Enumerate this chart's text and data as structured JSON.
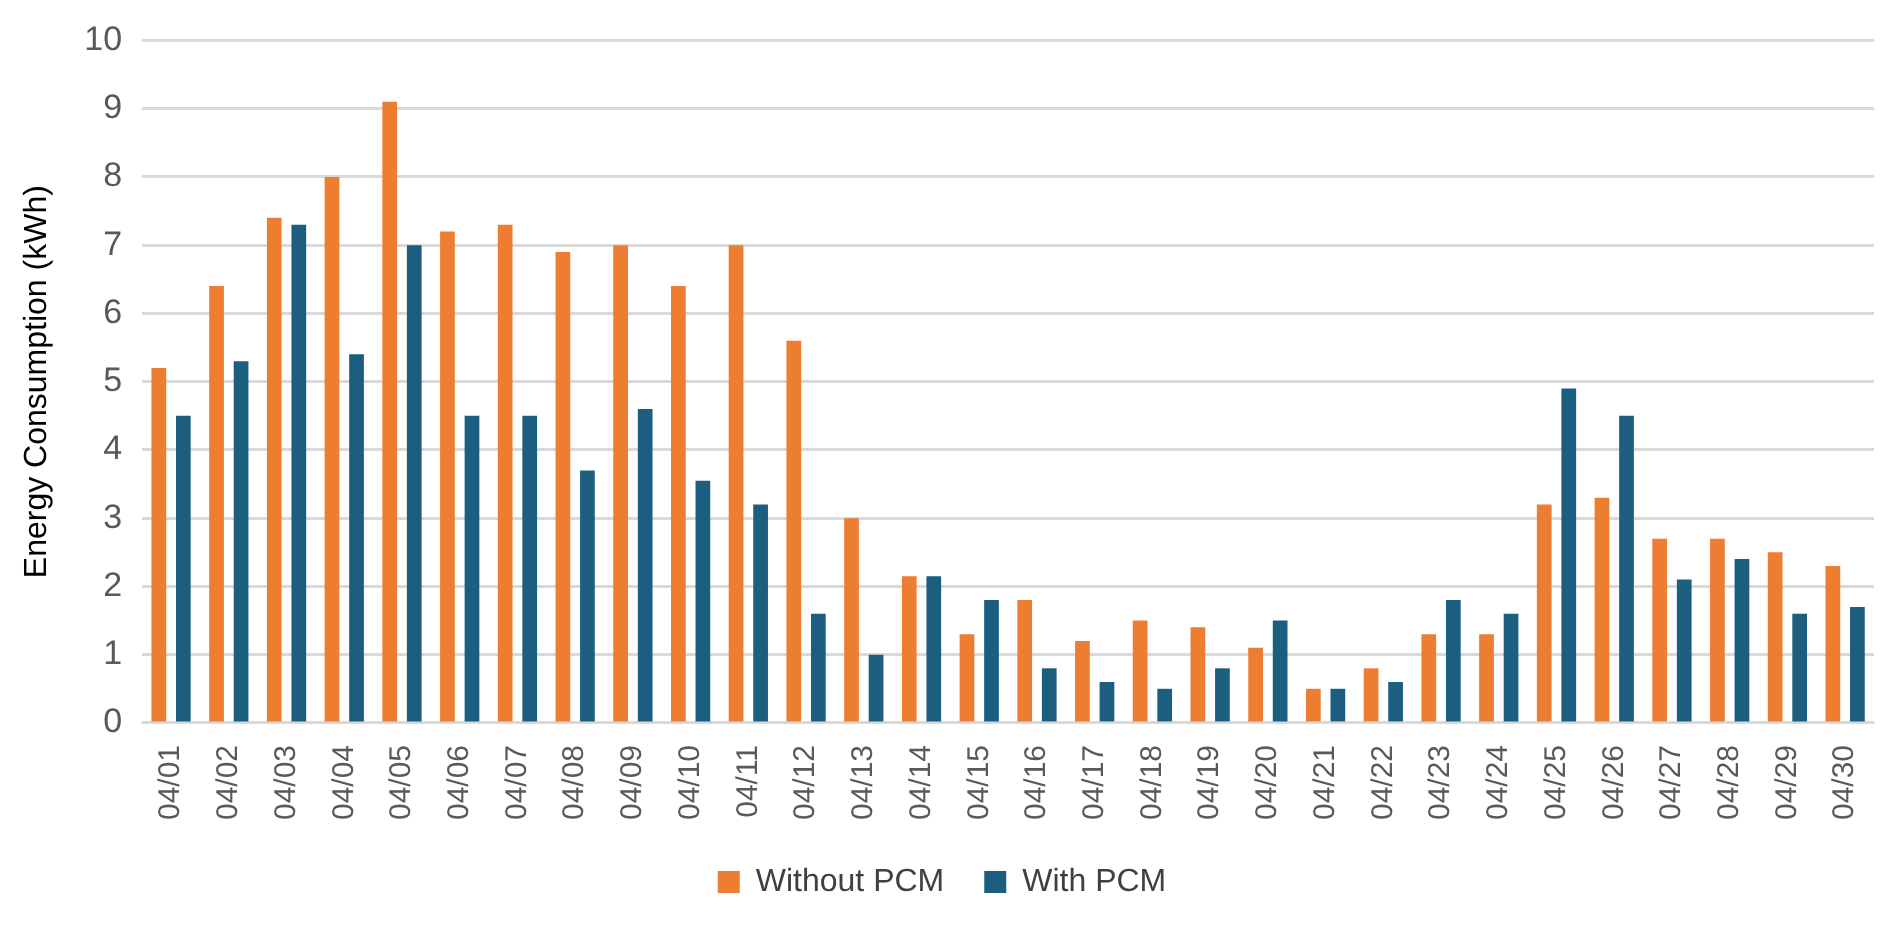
{
  "chart_data": {
    "type": "bar",
    "ylabel": "Energy Consumption (kWh)",
    "categories": [
      "04/01",
      "04/02",
      "04/03",
      "04/04",
      "04/05",
      "04/06",
      "04/07",
      "04/08",
      "04/09",
      "04/10",
      "04/11",
      "04/12",
      "04/13",
      "04/14",
      "04/15",
      "04/16",
      "04/17",
      "04/18",
      "04/19",
      "04/20",
      "04/21",
      "04/22",
      "04/23",
      "04/24",
      "04/25",
      "04/26",
      "04/27",
      "04/28",
      "04/29",
      "04/30"
    ],
    "series": [
      {
        "name": "Without PCM",
        "color": "#ed7d31",
        "values": [
          5.2,
          6.4,
          7.4,
          8.0,
          9.1,
          7.2,
          7.3,
          6.9,
          7.0,
          6.4,
          7.0,
          5.6,
          3.0,
          2.15,
          1.3,
          1.8,
          1.2,
          1.5,
          1.4,
          1.1,
          0.5,
          0.8,
          1.3,
          1.3,
          3.2,
          3.3,
          2.7,
          2.7,
          2.5,
          2.3
        ]
      },
      {
        "name": "With PCM",
        "color": "#1b5e7f",
        "values": [
          4.5,
          5.3,
          7.3,
          5.4,
          7.0,
          4.5,
          4.5,
          3.7,
          4.6,
          3.55,
          3.2,
          1.6,
          1.0,
          2.15,
          1.8,
          0.8,
          0.6,
          0.5,
          0.8,
          1.5,
          0.5,
          0.6,
          1.8,
          1.6,
          4.9,
          4.5,
          2.1,
          2.4,
          1.6,
          1.7
        ]
      }
    ],
    "ylim": [
      0,
      10
    ],
    "yticks": [
      0,
      1,
      2,
      3,
      4,
      5,
      6,
      7,
      8,
      9,
      10
    ],
    "grid": "y",
    "legend": "bottom"
  }
}
